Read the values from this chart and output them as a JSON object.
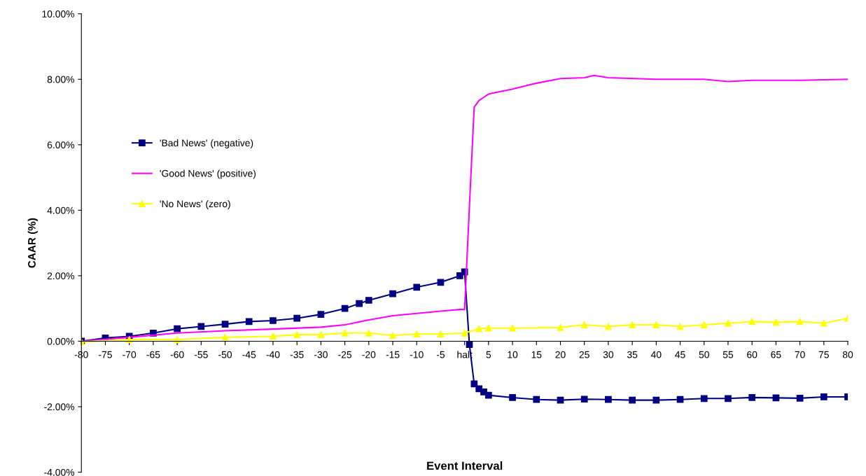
{
  "chart_data": {
    "type": "line",
    "xlabel": "Event Interval",
    "ylabel": "CAAR (%)",
    "xlim": [
      -80,
      80
    ],
    "xticks": [
      -80,
      -75,
      -70,
      -65,
      -60,
      -55,
      -50,
      -45,
      -40,
      -35,
      -30,
      -25,
      -20,
      -15,
      -10,
      -5,
      {
        "value": 0,
        "label": "halt"
      },
      5,
      10,
      15,
      20,
      25,
      30,
      35,
      40,
      45,
      50,
      55,
      60,
      65,
      70,
      75,
      80
    ],
    "ylim": [
      -4,
      10
    ],
    "yticks": [
      {
        "value": -4,
        "label": "-4.00%"
      },
      {
        "value": -2,
        "label": "-2.00%"
      },
      {
        "value": 0,
        "label": "0.00%"
      },
      {
        "value": 2,
        "label": "2.00%"
      },
      {
        "value": 4,
        "label": "4.00%"
      },
      {
        "value": 6,
        "label": "6.00%"
      },
      {
        "value": 8,
        "label": "8.00%"
      },
      {
        "value": 10,
        "label": "10.00%"
      }
    ],
    "grid": false,
    "legend": "left",
    "series": [
      {
        "name": "'Bad News' (negative)",
        "color": "#000080",
        "marker": "square",
        "x": [
          -80,
          -75,
          -70,
          -65,
          -60,
          -55,
          -50,
          -45,
          -40,
          -35,
          -30,
          -25,
          -22,
          -20,
          -15,
          -10,
          -5,
          -1,
          0,
          1,
          2,
          3,
          4,
          5,
          10,
          15,
          20,
          25,
          30,
          35,
          40,
          45,
          50,
          55,
          60,
          65,
          70,
          75,
          80
        ],
        "values": [
          0,
          0.1,
          0.15,
          0.25,
          0.38,
          0.45,
          0.52,
          0.6,
          0.63,
          0.7,
          0.82,
          1.0,
          1.15,
          1.25,
          1.45,
          1.65,
          1.8,
          2.0,
          2.12,
          -0.1,
          -1.3,
          -1.45,
          -1.55,
          -1.65,
          -1.72,
          -1.78,
          -1.8,
          -1.77,
          -1.78,
          -1.8,
          -1.8,
          -1.78,
          -1.75,
          -1.75,
          -1.72,
          -1.73,
          -1.74,
          -1.7,
          -1.7
        ]
      },
      {
        "name": "'Good News' (positive)",
        "color": "#ff00ff",
        "marker": "none",
        "x": [
          -80,
          -70,
          -60,
          -50,
          -40,
          -30,
          -25,
          -20,
          -15,
          -10,
          -5,
          -1,
          0,
          1,
          2,
          3,
          4,
          5,
          10,
          15,
          20,
          25,
          27,
          30,
          40,
          50,
          55,
          60,
          70,
          80
        ],
        "values": [
          0,
          0.12,
          0.25,
          0.32,
          0.37,
          0.43,
          0.5,
          0.65,
          0.78,
          0.85,
          0.92,
          0.97,
          0.97,
          4.1,
          7.15,
          7.35,
          7.45,
          7.55,
          7.7,
          7.88,
          8.02,
          8.05,
          8.12,
          8.05,
          8.0,
          8.0,
          7.93,
          7.97,
          7.97,
          8.0
        ]
      },
      {
        "name": "'No News' (zero)",
        "color": "#ffff00",
        "marker": "triangle",
        "x": [
          -80,
          -70,
          -60,
          -50,
          -40,
          -35,
          -30,
          -25,
          -20,
          -15,
          -10,
          -5,
          0,
          3,
          5,
          10,
          20,
          25,
          30,
          35,
          40,
          45,
          50,
          55,
          60,
          65,
          70,
          75,
          80
        ],
        "values": [
          -0.02,
          0.05,
          0.05,
          0.12,
          0.15,
          0.2,
          0.2,
          0.25,
          0.25,
          0.18,
          0.22,
          0.22,
          0.25,
          0.38,
          0.4,
          0.4,
          0.42,
          0.5,
          0.45,
          0.5,
          0.5,
          0.45,
          0.5,
          0.55,
          0.6,
          0.58,
          0.6,
          0.55,
          0.7
        ]
      }
    ]
  }
}
